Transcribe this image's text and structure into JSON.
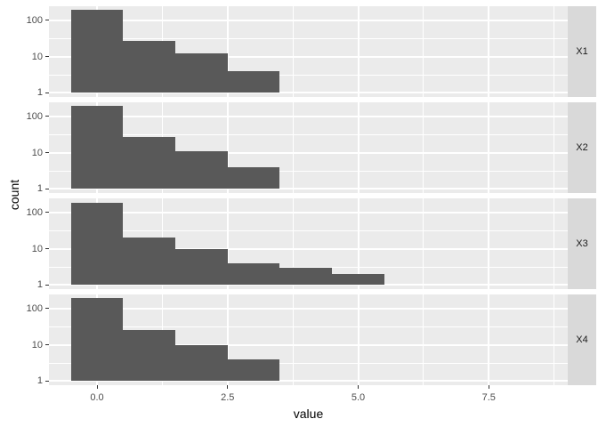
{
  "style": {
    "figure_bg": "#FFFFFF",
    "panel_bg": "#EBEBEB",
    "strip_bg": "#D9D9D9",
    "bar_fill": "#595959",
    "grid_color": "#FFFFFF",
    "tick_label_color": "#4D4D4D",
    "axis_title_color": "#000000",
    "strip_text_color": "#1A1A1A",
    "axis_tick_color": "#333333"
  },
  "axes": {
    "x": {
      "title": "value",
      "ticks": [
        0.0,
        2.5,
        5.0,
        7.5
      ],
      "tick_labels": [
        "0.0",
        "2.5",
        "5.0",
        "7.5"
      ],
      "minor_breaks": [
        1.25,
        3.75,
        6.25,
        8.75
      ],
      "range": [
        -0.93,
        9.0
      ]
    },
    "y": {
      "title": "count",
      "scale": "log10",
      "ticks": [
        1,
        10,
        100
      ],
      "tick_labels": [
        "1",
        "10",
        "100"
      ],
      "minor_breaks": [
        3.162,
        31.62
      ],
      "range_log10": [
        -0.113,
        2.39
      ]
    }
  },
  "chart_data": {
    "type": "bar",
    "subtype": "faceted-histogram-log10-y",
    "title": "",
    "xlabel": "value",
    "ylabel": "count",
    "grid": true,
    "legend": false,
    "facet_position": "right-strips",
    "bin_width": 1,
    "bin_centers": [
      0,
      1,
      2,
      3,
      4,
      5
    ],
    "facets": [
      {
        "label": "X1",
        "counts": [
          200,
          27,
          12,
          4
        ]
      },
      {
        "label": "X2",
        "counts": [
          190,
          27,
          11,
          4
        ]
      },
      {
        "label": "X3",
        "counts": [
          185,
          20,
          10,
          4,
          3,
          2
        ]
      },
      {
        "label": "X4",
        "counts": [
          190,
          26,
          10,
          4
        ]
      }
    ]
  }
}
